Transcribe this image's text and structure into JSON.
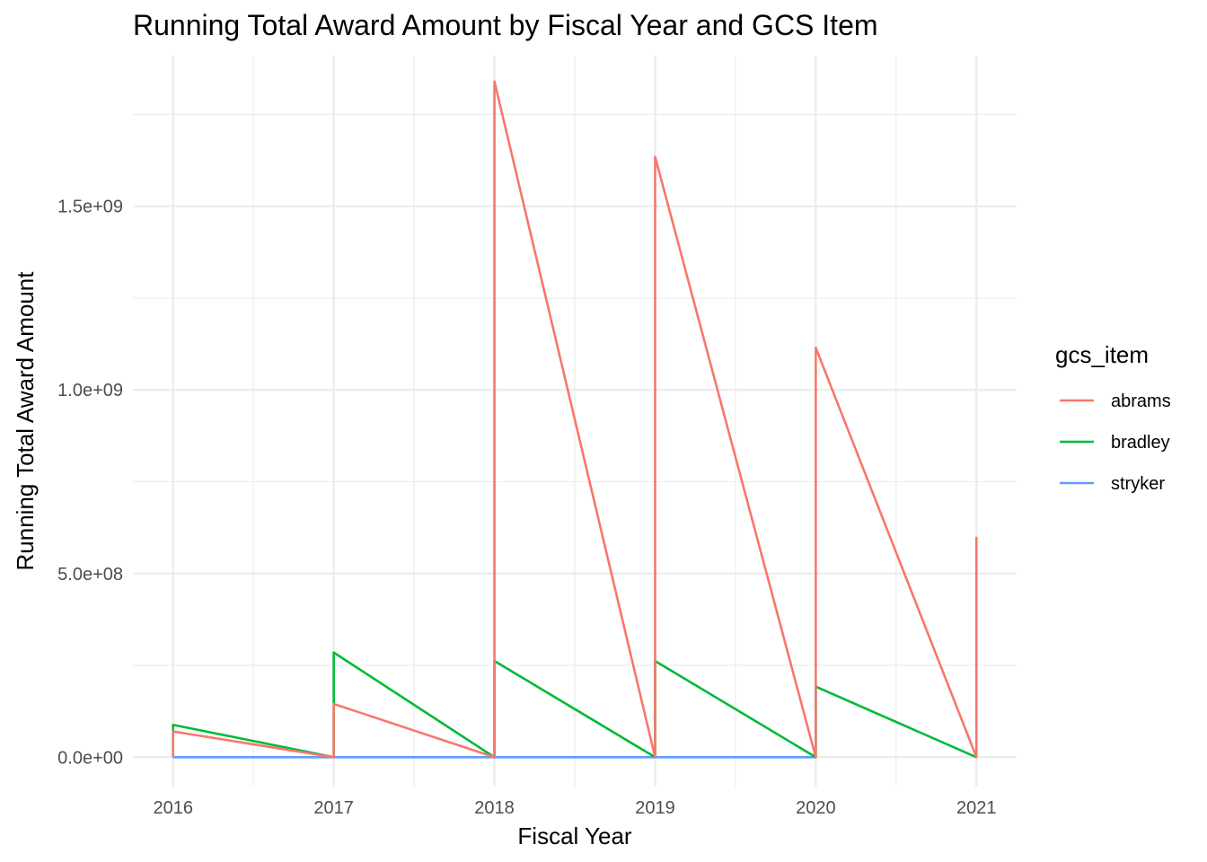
{
  "chart_data": {
    "type": "line",
    "title": "Running Total Award Amount by Fiscal Year and GCS Item",
    "xlabel": "Fiscal Year",
    "ylabel": "Running Total Award Amount",
    "x_ticks": [
      2016,
      2017,
      2018,
      2019,
      2020,
      2021
    ],
    "x_tick_labels": [
      "2016",
      "2017",
      "2018",
      "2019",
      "2020",
      "2021"
    ],
    "y_ticks": [
      0,
      500000000,
      1000000000,
      1500000000
    ],
    "y_tick_labels": [
      "0.0e+00",
      "5.0e+08",
      "1.0e+09",
      "1.5e+09"
    ],
    "xlim": [
      2015.75,
      2021.25
    ],
    "ylim": [
      -80000000,
      1910000000
    ],
    "grid": true,
    "legend": {
      "title": "gcs_item",
      "position": "right"
    },
    "series": [
      {
        "name": "abrams",
        "color": "#F8766D",
        "points": [
          [
            2016,
            0
          ],
          [
            2016,
            70000000
          ],
          [
            2017,
            0
          ],
          [
            2017,
            145000000
          ],
          [
            2018,
            0
          ],
          [
            2018,
            1840000000
          ],
          [
            2019,
            0
          ],
          [
            2019,
            1635000000
          ],
          [
            2020,
            0
          ],
          [
            2020,
            1115000000
          ],
          [
            2021,
            0
          ],
          [
            2021,
            600000000
          ]
        ]
      },
      {
        "name": "bradley",
        "color": "#00BA38",
        "points": [
          [
            2016,
            0
          ],
          [
            2016,
            88000000
          ],
          [
            2017,
            0
          ],
          [
            2017,
            285000000
          ],
          [
            2018,
            0
          ],
          [
            2018,
            262000000
          ],
          [
            2019,
            0
          ],
          [
            2019,
            262000000
          ],
          [
            2020,
            0
          ],
          [
            2020,
            192000000
          ],
          [
            2021,
            0
          ]
        ]
      },
      {
        "name": "stryker",
        "color": "#619CFF",
        "points": [
          [
            2016,
            0
          ],
          [
            2017,
            0
          ],
          [
            2018,
            0
          ],
          [
            2019,
            0
          ],
          [
            2020,
            0
          ]
        ]
      }
    ]
  }
}
